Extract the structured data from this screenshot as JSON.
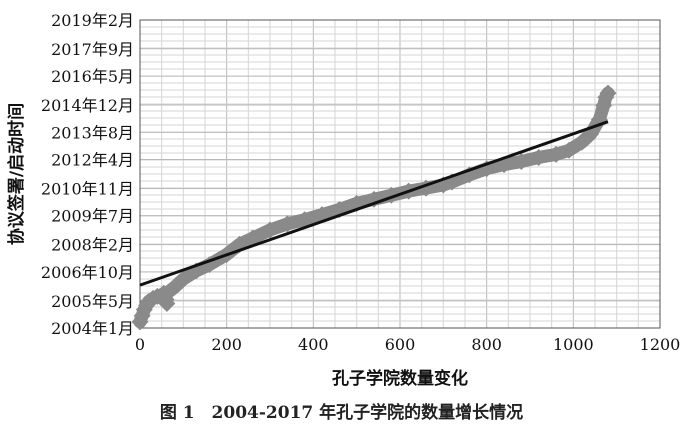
{
  "figure_caption": "图 1　2004-2017 年孔子学院的数量增长情况",
  "chart_data": {
    "type": "scatter",
    "xlabel": "孔子学院数量变化",
    "ylabel": "协议签署/启动时间",
    "xlim": [
      0,
      1200
    ],
    "x_ticks": [
      0,
      200,
      400,
      600,
      800,
      1000,
      1200
    ],
    "x_tick_labels": [
      "0",
      "200",
      "400",
      "600",
      "800",
      "1000",
      "1200"
    ],
    "y_ticks": [
      2004.0,
      2005.33,
      2006.75,
      2008.08,
      2009.5,
      2010.83,
      2012.25,
      2013.58,
      2014.92,
      2016.33,
      2017.67,
      2019.08
    ],
    "y_tick_labels": [
      "2004年1月",
      "2005年5月",
      "2006年10月",
      "2008年2月",
      "2009年7月",
      "2010年11月",
      "2012年4月",
      "2013年8月",
      "2014年12月",
      "2016年5月",
      "2017年9月",
      "2019年2月"
    ],
    "grid": true,
    "series": [
      {
        "kind": "scatter",
        "color": "#8a8a8a",
        "points": [
          [
            0,
            2004.3
          ],
          [
            5,
            2004.6
          ],
          [
            10,
            2004.9
          ],
          [
            15,
            2005.1
          ],
          [
            20,
            2005.3
          ],
          [
            30,
            2005.45
          ],
          [
            40,
            2005.55
          ],
          [
            50,
            2005.6
          ],
          [
            55,
            2005.7
          ],
          [
            60,
            2005.4
          ],
          [
            62,
            2005.2
          ],
          [
            65,
            2005.75
          ],
          [
            80,
            2006.0
          ],
          [
            100,
            2006.4
          ],
          [
            130,
            2006.8
          ],
          [
            160,
            2007.1
          ],
          [
            200,
            2007.6
          ],
          [
            230,
            2008.1
          ],
          [
            260,
            2008.4
          ],
          [
            300,
            2008.8
          ],
          [
            340,
            2009.1
          ],
          [
            380,
            2009.3
          ],
          [
            420,
            2009.55
          ],
          [
            460,
            2009.8
          ],
          [
            500,
            2010.1
          ],
          [
            540,
            2010.3
          ],
          [
            580,
            2010.5
          ],
          [
            620,
            2010.7
          ],
          [
            660,
            2010.85
          ],
          [
            700,
            2011.0
          ],
          [
            720,
            2011.15
          ],
          [
            760,
            2011.5
          ],
          [
            800,
            2011.8
          ],
          [
            840,
            2012.0
          ],
          [
            880,
            2012.15
          ],
          [
            920,
            2012.35
          ],
          [
            960,
            2012.5
          ],
          [
            990,
            2012.7
          ],
          [
            1020,
            2013.1
          ],
          [
            1040,
            2013.5
          ],
          [
            1060,
            2014.2
          ],
          [
            1070,
            2014.9
          ],
          [
            1075,
            2015.3
          ],
          [
            1080,
            2015.5
          ]
        ]
      },
      {
        "kind": "line",
        "name": "",
        "color": "#111111",
        "points": [
          [
            0,
            2006.1
          ],
          [
            1080,
            2014.1
          ]
        ]
      }
    ]
  }
}
